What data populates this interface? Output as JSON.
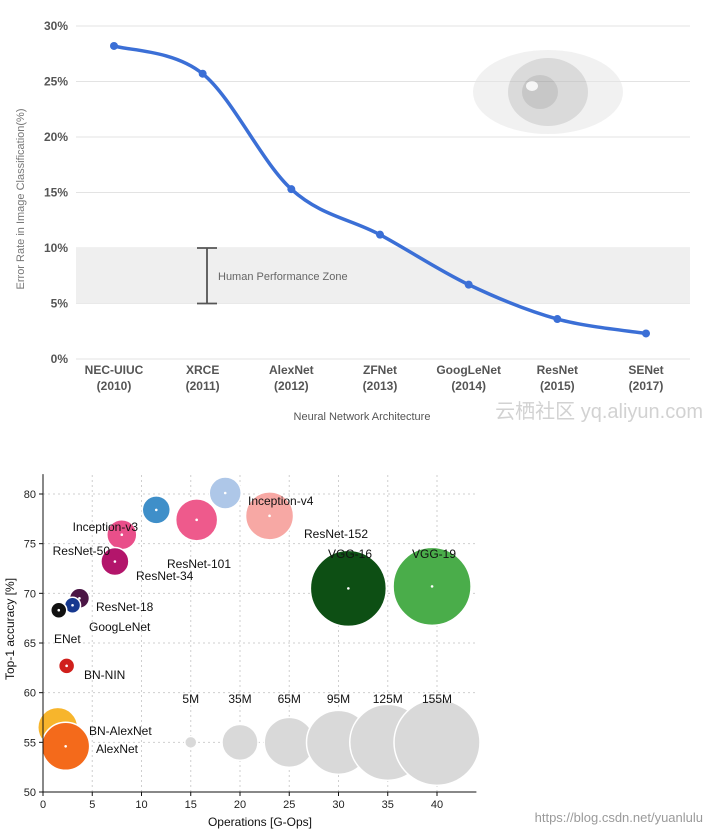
{
  "chart_data": [
    {
      "type": "line",
      "title": "",
      "xlabel": "Neural Network Architecture",
      "ylabel": "Error Rate in Image Classification(%)",
      "ylim": [
        0,
        30
      ],
      "yticks": [
        "0%",
        "5%",
        "10%",
        "15%",
        "20%",
        "25%",
        "30%"
      ],
      "ytick_values": [
        0,
        5,
        10,
        15,
        20,
        25,
        30
      ],
      "categories": [
        {
          "name": "NEC-UIUC",
          "year": "(2010)"
        },
        {
          "name": "XRCE",
          "year": "(2011)"
        },
        {
          "name": "AlexNet",
          "year": "(2012)"
        },
        {
          "name": "ZFNet",
          "year": "(2013)"
        },
        {
          "name": "GoogLeNet",
          "year": "(2014)"
        },
        {
          "name": "ResNet",
          "year": "(2015)"
        },
        {
          "name": "SENet",
          "year": "(2017)"
        }
      ],
      "values": [
        28.2,
        25.7,
        15.3,
        11.2,
        6.7,
        3.6,
        2.3
      ],
      "band": {
        "label": "Human Performance Zone",
        "from": 5,
        "to": 10
      },
      "colors": {
        "line": "#3b6fd6",
        "band": "#efefef",
        "grid": "#e3e3e3"
      },
      "watermark": "云栖社区 yq.aliyun.com"
    },
    {
      "type": "scatter",
      "title": "",
      "xlabel": "Operations [G-Ops]",
      "ylabel": "Top-1 accuracy [%]",
      "xlim": [
        0,
        44
      ],
      "ylim": [
        50,
        82
      ],
      "xticks": [
        0,
        5,
        10,
        15,
        20,
        25,
        30,
        35,
        40
      ],
      "yticks": [
        50,
        55,
        60,
        65,
        70,
        75,
        80
      ],
      "points": [
        {
          "name": "Inception-v4",
          "x": 18.5,
          "y": 80.1,
          "r": 16,
          "color": "#aec7e8"
        },
        {
          "name": "Inception-v3",
          "x": 11.5,
          "y": 78.4,
          "r": 14,
          "color": "#3f8fc9"
        },
        {
          "name": "ResNet-152",
          "x": 23.0,
          "y": 77.8,
          "r": 24,
          "color": "#f7a8a4"
        },
        {
          "name": "ResNet-101",
          "x": 15.6,
          "y": 77.4,
          "r": 21,
          "color": "#ee5a8c"
        },
        {
          "name": "ResNet-50",
          "x": 8.0,
          "y": 75.9,
          "r": 15,
          "color": "#e94f8a"
        },
        {
          "name": "ResNet-34",
          "x": 7.3,
          "y": 73.2,
          "r": 14,
          "color": "#b3156b"
        },
        {
          "name": "VGG-16",
          "x": 31.0,
          "y": 70.5,
          "r": 38,
          "color": "#0d4f14"
        },
        {
          "name": "VGG-19",
          "x": 39.5,
          "y": 70.7,
          "r": 39,
          "color": "#4aad4a"
        },
        {
          "name": "ResNet-18",
          "x": 3.7,
          "y": 69.5,
          "r": 10,
          "color": "#4b1545"
        },
        {
          "name": "GoogLeNet",
          "x": 3.0,
          "y": 68.8,
          "r": 8,
          "color": "#16388f"
        },
        {
          "name": "ENet",
          "x": 1.6,
          "y": 68.3,
          "r": 8,
          "color": "#111111"
        },
        {
          "name": "BN-NIN",
          "x": 2.4,
          "y": 62.7,
          "r": 8,
          "color": "#d0201c"
        },
        {
          "name": "BN-AlexNet",
          "x": 1.5,
          "y": 56.5,
          "r": 20,
          "color": "#f7b52c"
        },
        {
          "name": "AlexNet",
          "x": 2.3,
          "y": 54.6,
          "r": 24,
          "color": "#f46a1b"
        }
      ],
      "size_legend": [
        {
          "label": "5M",
          "x": 15,
          "r": 6
        },
        {
          "label": "35M",
          "x": 20,
          "r": 18
        },
        {
          "label": "65M",
          "x": 25,
          "r": 25
        },
        {
          "label": "95M",
          "x": 30,
          "r": 32
        },
        {
          "label": "125M",
          "x": 35,
          "r": 38
        },
        {
          "label": "155M",
          "x": 40,
          "r": 43
        }
      ],
      "size_legend_y": 55,
      "colors": {
        "grid": "#cfcfcf",
        "legend_bubble": "#d9d9d9"
      },
      "watermark": "https://blog.csdn.net/yuanlulu"
    }
  ]
}
